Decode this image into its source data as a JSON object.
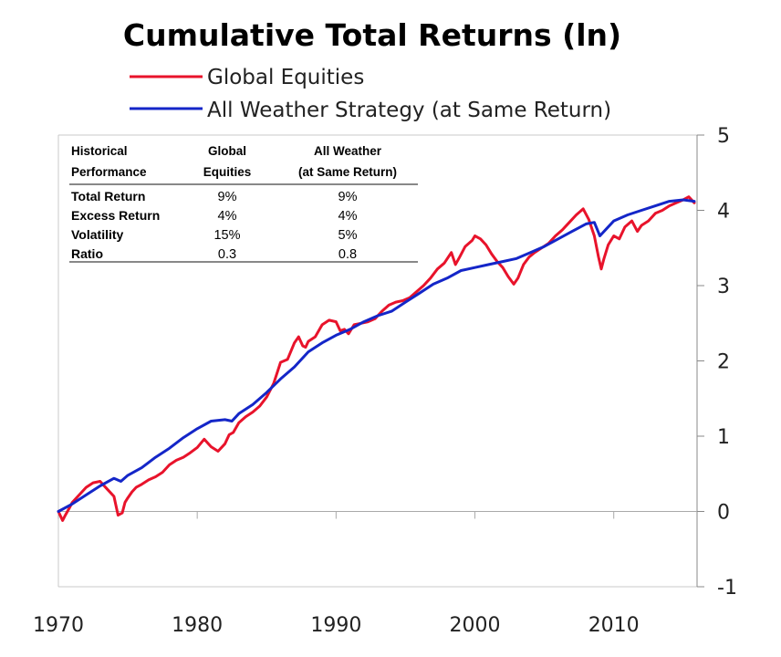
{
  "chart_data": {
    "type": "line",
    "title": "Cumulative Total Returns (ln)",
    "xlim": [
      1970,
      2016
    ],
    "ylim": [
      -1,
      5
    ],
    "x_ticks": [
      1970,
      1980,
      1990,
      2000,
      2010
    ],
    "y_ticks": [
      5,
      4,
      3,
      2,
      1,
      0,
      -1
    ],
    "legend_position": "top",
    "series": [
      {
        "name": "Global Equities",
        "color": "#e8132b",
        "x": [
          1970.0,
          1970.3,
          1970.5,
          1970.8,
          1971.0,
          1971.5,
          1972.0,
          1972.5,
          1973.0,
          1973.5,
          1974.0,
          1974.3,
          1974.6,
          1974.8,
          1975.0,
          1975.3,
          1975.6,
          1976.0,
          1976.5,
          1977.0,
          1977.5,
          1978.0,
          1978.5,
          1979.0,
          1979.5,
          1980.0,
          1980.5,
          1980.8,
          1981.0,
          1981.5,
          1982.0,
          1982.3,
          1982.6,
          1983.0,
          1983.5,
          1984.0,
          1984.5,
          1985.0,
          1985.5,
          1986.0,
          1986.5,
          1987.0,
          1987.3,
          1987.6,
          1987.8,
          1988.0,
          1988.5,
          1989.0,
          1989.5,
          1990.0,
          1990.3,
          1990.6,
          1990.9,
          1991.3,
          1991.8,
          1992.3,
          1992.8,
          1993.3,
          1993.8,
          1994.3,
          1994.8,
          1995.3,
          1995.8,
          1996.3,
          1996.8,
          1997.3,
          1997.8,
          1998.3,
          1998.6,
          1998.9,
          1999.3,
          1999.8,
          2000.0,
          2000.4,
          2000.8,
          2001.2,
          2001.6,
          2002.0,
          2002.4,
          2002.8,
          2003.1,
          2003.5,
          2003.9,
          2004.3,
          2004.8,
          2005.3,
          2005.8,
          2006.3,
          2006.8,
          2007.3,
          2007.8,
          2008.2,
          2008.6,
          2008.9,
          2009.1,
          2009.3,
          2009.6,
          2010.0,
          2010.4,
          2010.8,
          2011.3,
          2011.7,
          2012.0,
          2012.5,
          2013.0,
          2013.5,
          2014.0,
          2014.5,
          2015.0,
          2015.4,
          2015.8
        ],
        "y": [
          0.0,
          -0.12,
          -0.05,
          0.05,
          0.12,
          0.22,
          0.32,
          0.38,
          0.4,
          0.3,
          0.2,
          -0.05,
          -0.02,
          0.12,
          0.18,
          0.26,
          0.32,
          0.36,
          0.42,
          0.46,
          0.52,
          0.62,
          0.68,
          0.72,
          0.78,
          0.85,
          0.96,
          0.9,
          0.86,
          0.8,
          0.9,
          1.02,
          1.05,
          1.18,
          1.26,
          1.32,
          1.4,
          1.52,
          1.7,
          1.98,
          2.02,
          2.24,
          2.32,
          2.2,
          2.18,
          2.26,
          2.32,
          2.48,
          2.54,
          2.52,
          2.4,
          2.42,
          2.36,
          2.48,
          2.5,
          2.52,
          2.56,
          2.66,
          2.74,
          2.78,
          2.8,
          2.84,
          2.92,
          3.0,
          3.1,
          3.22,
          3.3,
          3.44,
          3.28,
          3.38,
          3.52,
          3.6,
          3.66,
          3.62,
          3.54,
          3.42,
          3.32,
          3.24,
          3.12,
          3.02,
          3.1,
          3.28,
          3.38,
          3.44,
          3.5,
          3.56,
          3.66,
          3.74,
          3.84,
          3.94,
          4.02,
          3.88,
          3.66,
          3.38,
          3.22,
          3.36,
          3.54,
          3.66,
          3.62,
          3.78,
          3.86,
          3.72,
          3.8,
          3.86,
          3.96,
          4.0,
          4.06,
          4.1,
          4.14,
          4.18,
          4.1
        ]
      },
      {
        "name": "All Weather Strategy (at Same Return)",
        "color": "#1426c8",
        "x": [
          1970.0,
          1971.0,
          1972.0,
          1973.0,
          1974.0,
          1974.5,
          1975.0,
          1976.0,
          1977.0,
          1978.0,
          1979.0,
          1980.0,
          1981.0,
          1982.0,
          1982.5,
          1983.0,
          1984.0,
          1985.0,
          1986.0,
          1987.0,
          1988.0,
          1989.0,
          1990.0,
          1991.0,
          1992.0,
          1993.0,
          1994.0,
          1995.0,
          1996.0,
          1997.0,
          1998.0,
          1999.0,
          2000.0,
          2001.0,
          2002.0,
          2003.0,
          2004.0,
          2005.0,
          2006.0,
          2007.0,
          2008.0,
          2008.6,
          2009.0,
          2009.5,
          2010.0,
          2011.0,
          2012.0,
          2013.0,
          2014.0,
          2015.0,
          2015.8
        ],
        "y": [
          0.0,
          0.1,
          0.22,
          0.34,
          0.44,
          0.4,
          0.48,
          0.58,
          0.72,
          0.84,
          0.98,
          1.1,
          1.2,
          1.22,
          1.2,
          1.3,
          1.42,
          1.58,
          1.76,
          1.92,
          2.12,
          2.24,
          2.34,
          2.42,
          2.52,
          2.6,
          2.66,
          2.78,
          2.9,
          3.02,
          3.1,
          3.2,
          3.24,
          3.28,
          3.32,
          3.36,
          3.44,
          3.52,
          3.62,
          3.72,
          3.82,
          3.84,
          3.66,
          3.76,
          3.86,
          3.94,
          4.0,
          4.06,
          4.12,
          4.14,
          4.12
        ]
      }
    ]
  },
  "table": {
    "headers": [
      [
        "Historical",
        "Performance"
      ],
      [
        "Global",
        "Equities"
      ],
      [
        "All Weather",
        "(at Same Return)"
      ]
    ],
    "rows": [
      {
        "label": "Total Return",
        "global": "9%",
        "allweather": "9%"
      },
      {
        "label": "Excess Return",
        "global": "4%",
        "allweather": "4%"
      },
      {
        "label": "Volatility",
        "global": "15%",
        "allweather": "5%"
      },
      {
        "label": "Ratio",
        "global": "0.3",
        "allweather": "0.8"
      }
    ]
  }
}
